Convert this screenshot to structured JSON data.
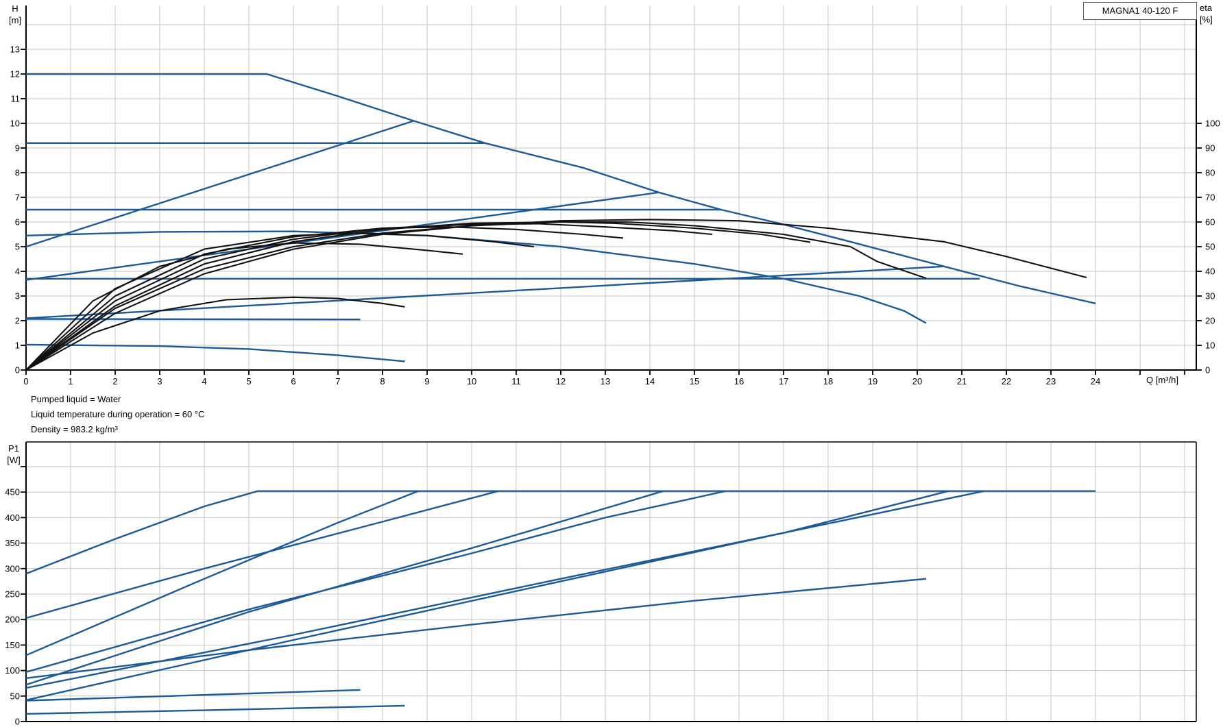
{
  "title_box": {
    "label": "MAGNA1 40-120 F"
  },
  "labels": {
    "h_axis": "H\n[m]",
    "eta_axis": "eta\n[%]",
    "p1_axis": "P1\n[W]",
    "q_axis": "Q [m³/h]"
  },
  "info_lines": [
    "Pumped liquid = Water",
    "Liquid temperature during operation = 60 °C",
    "Density = 983.2 kg/m³"
  ],
  "colors": {
    "curve_blue": "#1d5a96",
    "curve_black": "#121212",
    "grid": "#c6c6c6",
    "axis": "#000000",
    "title_border": "#666666"
  },
  "chart_data": [
    {
      "type": "line",
      "title": "MAGNA1 40-120 F",
      "xlabel": "Q [m³/h]",
      "ylabel": "H [m]",
      "y2label": "eta [%]",
      "xlim": [
        0,
        26.3
      ],
      "ylim": [
        0,
        14.8
      ],
      "y2lim": [
        0,
        148
      ],
      "grid": true,
      "x_ticks": [
        0,
        1,
        2,
        3,
        4,
        5,
        6,
        7,
        8,
        9,
        10,
        11,
        12,
        13,
        14,
        15,
        16,
        17,
        18,
        19,
        20,
        21,
        22,
        23,
        24
      ],
      "x_minor_ticks": [
        25,
        26
      ],
      "y_ticks": [
        0,
        1,
        2,
        3,
        4,
        5,
        6,
        7,
        8,
        9,
        10,
        11,
        12,
        13
      ],
      "y2_ticks": [
        0,
        10,
        20,
        30,
        40,
        50,
        60,
        70,
        80,
        90,
        100
      ],
      "series": [
        {
          "name": "max-speed-curve",
          "color": "blue",
          "axis": "h",
          "width": 2.4,
          "points": [
            [
              0,
              12
            ],
            [
              5.4,
              12
            ],
            [
              7,
              11.1
            ],
            [
              8.7,
              10.1
            ],
            [
              10.3,
              9.2
            ],
            [
              12.5,
              8.2
            ],
            [
              14.2,
              7.2
            ],
            [
              15.6,
              6.5
            ],
            [
              17,
              5.9
            ],
            [
              18.5,
              5.2
            ],
            [
              20.6,
              4.2
            ],
            [
              22.3,
              3.4
            ],
            [
              24,
              2.7
            ]
          ]
        },
        {
          "name": "const-pressure-9.2",
          "color": "blue",
          "axis": "h",
          "width": 2.4,
          "points": [
            [
              0,
              9.2
            ],
            [
              10.3,
              9.2
            ]
          ]
        },
        {
          "name": "const-pressure-6.5",
          "color": "blue",
          "axis": "h",
          "width": 2.4,
          "points": [
            [
              0,
              6.5
            ],
            [
              15.6,
              6.5
            ]
          ]
        },
        {
          "name": "const-pressure-3.7",
          "color": "blue",
          "axis": "h",
          "width": 2.4,
          "points": [
            [
              0,
              3.7
            ],
            [
              21.4,
              3.7
            ]
          ]
        },
        {
          "name": "prop-pressure-high",
          "color": "blue",
          "axis": "h",
          "width": 2.4,
          "points": [
            [
              0,
              5.0
            ],
            [
              8.7,
              10.1
            ]
          ]
        },
        {
          "name": "prop-pressure-mid",
          "color": "blue",
          "axis": "h",
          "width": 2.4,
          "points": [
            [
              0,
              3.65
            ],
            [
              14.2,
              7.2
            ]
          ]
        },
        {
          "name": "prop-pressure-low",
          "color": "blue",
          "axis": "h",
          "width": 2.4,
          "points": [
            [
              0,
              2.1
            ],
            [
              20.6,
              4.2
            ]
          ]
        },
        {
          "name": "reduced-speed-curve",
          "color": "blue",
          "axis": "h",
          "width": 2.4,
          "points": [
            [
              0,
              5.45
            ],
            [
              3,
              5.6
            ],
            [
              6,
              5.62
            ],
            [
              9,
              5.45
            ],
            [
              12,
              5.0
            ],
            [
              15,
              4.3
            ],
            [
              17,
              3.7
            ],
            [
              18.7,
              3.0
            ],
            [
              19.7,
              2.4
            ],
            [
              20.2,
              1.9
            ]
          ]
        },
        {
          "name": "const-pressure-2.1",
          "color": "blue",
          "axis": "h",
          "width": 2.4,
          "points": [
            [
              0,
              2.07
            ],
            [
              7.5,
              2.05
            ]
          ]
        },
        {
          "name": "min-speed-curve",
          "color": "blue",
          "axis": "h",
          "width": 2.4,
          "points": [
            [
              0,
              1.03
            ],
            [
              3,
              0.97
            ],
            [
              5,
              0.85
            ],
            [
              7,
              0.6
            ],
            [
              8.5,
              0.35
            ]
          ]
        },
        {
          "name": "eta-max-speed",
          "color": "black",
          "axis": "eta",
          "width": 2.1,
          "points": [
            [
              0,
              0
            ],
            [
              2,
              23
            ],
            [
              4,
              39
            ],
            [
              6,
              49
            ],
            [
              8,
              55
            ],
            [
              10,
              58.5
            ],
            [
              12,
              60.5
            ],
            [
              14,
              61
            ],
            [
              16,
              60.5
            ],
            [
              18,
              57.5
            ],
            [
              20.6,
              52
            ],
            [
              22,
              46
            ],
            [
              23.8,
              37.5
            ]
          ]
        },
        {
          "name": "eta-speed-2",
          "color": "black",
          "axis": "eta",
          "width": 2.1,
          "points": [
            [
              0,
              0
            ],
            [
              2,
              25
            ],
            [
              4,
              41
            ],
            [
              6,
              50
            ],
            [
              8,
              55.5
            ],
            [
              10,
              58.5
            ],
            [
              12,
              60
            ],
            [
              13.5,
              60
            ],
            [
              15,
              58.5
            ],
            [
              17,
              55
            ],
            [
              18.5,
              50
            ],
            [
              19.1,
              44
            ],
            [
              20.2,
              37.2
            ]
          ]
        },
        {
          "name": "eta-speed-3",
          "color": "black",
          "axis": "eta",
          "width": 2.1,
          "points": [
            [
              0,
              0
            ],
            [
              2,
              26
            ],
            [
              4,
              43
            ],
            [
              6,
              52
            ],
            [
              8,
              57
            ],
            [
              10,
              59.5
            ],
            [
              12,
              60
            ],
            [
              13.2,
              59.5
            ],
            [
              15,
              57.5
            ],
            [
              16.5,
              55
            ],
            [
              17.6,
              51.8
            ]
          ]
        },
        {
          "name": "eta-speed-4",
          "color": "black",
          "axis": "eta",
          "width": 2.1,
          "points": [
            [
              0,
              0
            ],
            [
              2,
              28
            ],
            [
              4,
              45
            ],
            [
              6,
              53
            ],
            [
              8,
              57.5
            ],
            [
              10,
              59
            ],
            [
              11.5,
              59.3
            ],
            [
              13,
              58
            ],
            [
              14.5,
              56.5
            ],
            [
              15.4,
              55
            ]
          ]
        },
        {
          "name": "eta-speed-5",
          "color": "black",
          "axis": "eta",
          "width": 2.1,
          "points": [
            [
              0,
              0
            ],
            [
              2,
              30
            ],
            [
              4,
              47
            ],
            [
              6,
              54
            ],
            [
              8,
              57.5
            ],
            [
              9.5,
              58
            ],
            [
              11,
              57
            ],
            [
              12.5,
              55
            ],
            [
              13.4,
              53.5
            ]
          ]
        },
        {
          "name": "eta-speed-6",
          "color": "black",
          "axis": "eta",
          "width": 2.1,
          "points": [
            [
              0,
              0
            ],
            [
              2,
              33
            ],
            [
              4,
              49
            ],
            [
              6,
              54.5
            ],
            [
              7.5,
              55.5
            ],
            [
              9,
              54.5
            ],
            [
              10.5,
              52
            ],
            [
              11.4,
              50
            ]
          ]
        },
        {
          "name": "eta-speed-7",
          "color": "black",
          "axis": "eta",
          "width": 2.1,
          "points": [
            [
              0,
              0
            ],
            [
              1.5,
              28
            ],
            [
              3,
              42
            ],
            [
              4.5,
              49
            ],
            [
              6,
              51.5
            ],
            [
              7.5,
              51
            ],
            [
              9,
              48.5
            ],
            [
              9.8,
              47
            ]
          ]
        },
        {
          "name": "eta-min-speed",
          "color": "black",
          "axis": "eta",
          "width": 2.1,
          "points": [
            [
              0,
              0
            ],
            [
              1.5,
              15
            ],
            [
              3,
              24
            ],
            [
              4.5,
              28.5
            ],
            [
              6,
              29.5
            ],
            [
              7,
              29
            ],
            [
              8,
              27
            ],
            [
              8.5,
              25.6
            ]
          ]
        }
      ]
    },
    {
      "type": "line",
      "title": "",
      "xlabel": "Q [m³/h]",
      "ylabel": "P1 [W]",
      "xlim": [
        0,
        26.3
      ],
      "ylim": [
        0,
        548
      ],
      "grid": true,
      "y_ticks": [
        0,
        50,
        100,
        150,
        200,
        250,
        300,
        350,
        400,
        450
      ],
      "y_minor_ticks": [
        500
      ],
      "series": [
        {
          "name": "p1-max-speed",
          "color": "blue",
          "axis": "p",
          "width": 2.4,
          "points": [
            [
              0,
              290
            ],
            [
              2,
              358
            ],
            [
              4,
              422
            ],
            [
              5.2,
              452
            ],
            [
              24,
              452
            ]
          ]
        },
        {
          "name": "p1-const-pressure-9.2",
          "color": "blue",
          "axis": "p",
          "width": 2.4,
          "points": [
            [
              0,
              203
            ],
            [
              4,
              300
            ],
            [
              8,
              392
            ],
            [
              10.6,
              452
            ]
          ]
        },
        {
          "name": "p1-prop-pressure-high",
          "color": "blue",
          "axis": "p",
          "width": 2.4,
          "points": [
            [
              0,
              130
            ],
            [
              4,
              280
            ],
            [
              7,
              390
            ],
            [
              8.8,
              452
            ]
          ]
        },
        {
          "name": "p1-const-pressure-6.5",
          "color": "blue",
          "axis": "p",
          "width": 2.4,
          "points": [
            [
              0,
              97
            ],
            [
              5,
              220
            ],
            [
              10,
              330
            ],
            [
              13,
              400
            ],
            [
              15.7,
              452
            ]
          ]
        },
        {
          "name": "p1-prop-pressure-mid",
          "color": "blue",
          "axis": "p",
          "width": 2.4,
          "points": [
            [
              0,
              72
            ],
            [
              5,
              215
            ],
            [
              10,
              340
            ],
            [
              14.3,
              452
            ]
          ]
        },
        {
          "name": "p1-reduced-speed",
          "color": "blue",
          "axis": "p",
          "width": 2.4,
          "points": [
            [
              0,
              85
            ],
            [
              5,
              140
            ],
            [
              10,
              190
            ],
            [
              15,
              237
            ],
            [
              20.2,
              280
            ]
          ]
        },
        {
          "name": "p1-const-pressure-3.7",
          "color": "blue",
          "axis": "p",
          "width": 2.4,
          "points": [
            [
              0,
              66
            ],
            [
              6,
              170
            ],
            [
              12,
              280
            ],
            [
              17,
              370
            ],
            [
              21.5,
              452
            ]
          ]
        },
        {
          "name": "p1-prop-pressure-low",
          "color": "blue",
          "axis": "p",
          "width": 2.4,
          "points": [
            [
              0,
              42
            ],
            [
              6,
              160
            ],
            [
              12,
              275
            ],
            [
              17,
              370
            ],
            [
              20.7,
              452
            ]
          ]
        },
        {
          "name": "p1-const-pressure-2.1",
          "color": "blue",
          "axis": "p",
          "width": 2.4,
          "points": [
            [
              0,
              41
            ],
            [
              7.5,
              62
            ]
          ]
        },
        {
          "name": "p1-min-speed",
          "color": "blue",
          "axis": "p",
          "width": 2.4,
          "points": [
            [
              0,
              15
            ],
            [
              4,
              22
            ],
            [
              8.5,
              31
            ]
          ]
        }
      ]
    }
  ]
}
